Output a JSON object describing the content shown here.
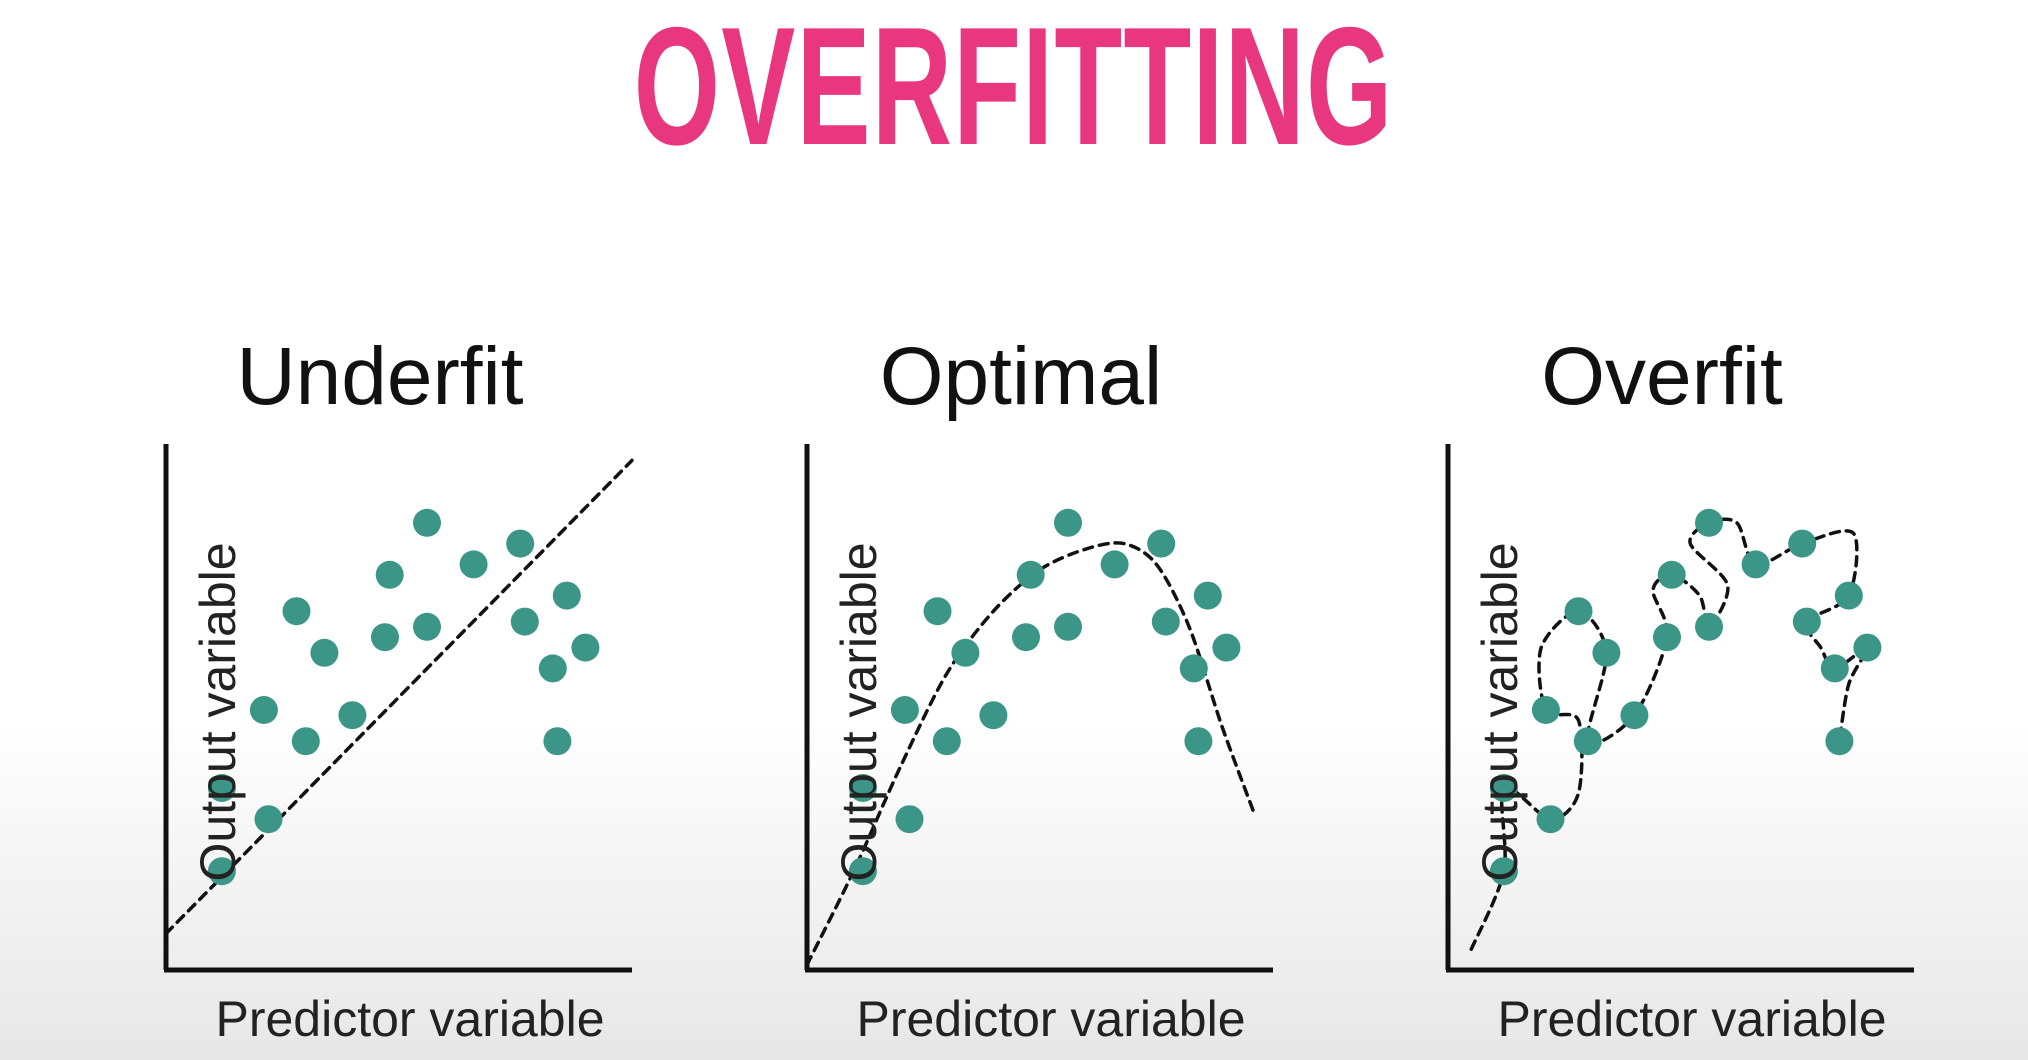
{
  "page": {
    "title": "OVERFITTING",
    "title_color": "#e8367f",
    "point_color": "#3b9688"
  },
  "chart_data": [
    {
      "type": "scatter",
      "title": "Underfit",
      "xlabel": "Predictor variable",
      "ylabel": "Output variable",
      "xlim": [
        0,
        100
      ],
      "ylim": [
        0,
        100
      ],
      "grid": false,
      "legend": "none",
      "points": [
        {
          "x": 12,
          "y": 35
        },
        {
          "x": 12,
          "y": 19
        },
        {
          "x": 21,
          "y": 50
        },
        {
          "x": 22,
          "y": 29
        },
        {
          "x": 28,
          "y": 69
        },
        {
          "x": 30,
          "y": 44
        },
        {
          "x": 34,
          "y": 61
        },
        {
          "x": 40,
          "y": 49
        },
        {
          "x": 47,
          "y": 64
        },
        {
          "x": 48,
          "y": 76
        },
        {
          "x": 56,
          "y": 66
        },
        {
          "x": 56,
          "y": 86
        },
        {
          "x": 66,
          "y": 78
        },
        {
          "x": 76,
          "y": 82
        },
        {
          "x": 77,
          "y": 67
        },
        {
          "x": 83,
          "y": 58
        },
        {
          "x": 84,
          "y": 44
        },
        {
          "x": 86,
          "y": 72
        },
        {
          "x": 90,
          "y": 62
        }
      ],
      "fit": [
        {
          "x": 0,
          "y": 7
        },
        {
          "x": 100,
          "y": 98
        }
      ]
    },
    {
      "type": "scatter",
      "title": "Optimal",
      "xlabel": "Predictor variable",
      "ylabel": "Output variable",
      "xlim": [
        0,
        100
      ],
      "ylim": [
        0,
        100
      ],
      "grid": false,
      "legend": "none",
      "points": [
        {
          "x": 12,
          "y": 35
        },
        {
          "x": 12,
          "y": 19
        },
        {
          "x": 21,
          "y": 50
        },
        {
          "x": 22,
          "y": 29
        },
        {
          "x": 28,
          "y": 69
        },
        {
          "x": 30,
          "y": 44
        },
        {
          "x": 34,
          "y": 61
        },
        {
          "x": 40,
          "y": 49
        },
        {
          "x": 47,
          "y": 64
        },
        {
          "x": 48,
          "y": 76
        },
        {
          "x": 56,
          "y": 66
        },
        {
          "x": 56,
          "y": 86
        },
        {
          "x": 66,
          "y": 78
        },
        {
          "x": 76,
          "y": 82
        },
        {
          "x": 77,
          "y": 67
        },
        {
          "x": 83,
          "y": 58
        },
        {
          "x": 84,
          "y": 44
        },
        {
          "x": 86,
          "y": 72
        },
        {
          "x": 90,
          "y": 62
        }
      ],
      "fit": [
        {
          "x": 0,
          "y": 1
        },
        {
          "x": 10,
          "y": 19
        },
        {
          "x": 20,
          "y": 39
        },
        {
          "x": 30,
          "y": 57
        },
        {
          "x": 40,
          "y": 69
        },
        {
          "x": 50,
          "y": 77
        },
        {
          "x": 60,
          "y": 81
        },
        {
          "x": 68,
          "y": 82
        },
        {
          "x": 75,
          "y": 78
        },
        {
          "x": 82,
          "y": 66
        },
        {
          "x": 89,
          "y": 47
        },
        {
          "x": 96,
          "y": 30
        }
      ]
    },
    {
      "type": "scatter",
      "title": "Overfit",
      "xlabel": "Predictor variable",
      "ylabel": "Output variable",
      "xlim": [
        0,
        100
      ],
      "ylim": [
        0,
        100
      ],
      "grid": false,
      "legend": "none",
      "points": [
        {
          "x": 12,
          "y": 35
        },
        {
          "x": 12,
          "y": 19
        },
        {
          "x": 21,
          "y": 50
        },
        {
          "x": 22,
          "y": 29
        },
        {
          "x": 28,
          "y": 69
        },
        {
          "x": 30,
          "y": 44
        },
        {
          "x": 34,
          "y": 61
        },
        {
          "x": 40,
          "y": 49
        },
        {
          "x": 47,
          "y": 64
        },
        {
          "x": 48,
          "y": 76
        },
        {
          "x": 56,
          "y": 66
        },
        {
          "x": 56,
          "y": 86
        },
        {
          "x": 66,
          "y": 78
        },
        {
          "x": 76,
          "y": 82
        },
        {
          "x": 77,
          "y": 67
        },
        {
          "x": 83,
          "y": 58
        },
        {
          "x": 84,
          "y": 44
        },
        {
          "x": 86,
          "y": 72
        },
        {
          "x": 90,
          "y": 62
        }
      ],
      "fit": [
        {
          "x": 5,
          "y": 4
        },
        {
          "x": 12,
          "y": 19
        },
        {
          "x": 12,
          "y": 35
        },
        {
          "x": 22,
          "y": 29
        },
        {
          "x": 28,
          "y": 34
        },
        {
          "x": 28,
          "y": 48
        },
        {
          "x": 21,
          "y": 50
        },
        {
          "x": 20,
          "y": 62
        },
        {
          "x": 28,
          "y": 69
        },
        {
          "x": 34,
          "y": 61
        },
        {
          "x": 30,
          "y": 44
        },
        {
          "x": 40,
          "y": 49
        },
        {
          "x": 47,
          "y": 64
        },
        {
          "x": 44,
          "y": 73
        },
        {
          "x": 48,
          "y": 76
        },
        {
          "x": 54,
          "y": 72
        },
        {
          "x": 56,
          "y": 66
        },
        {
          "x": 60,
          "y": 74
        },
        {
          "x": 52,
          "y": 82
        },
        {
          "x": 56,
          "y": 86
        },
        {
          "x": 62,
          "y": 86
        },
        {
          "x": 66,
          "y": 78
        },
        {
          "x": 76,
          "y": 82
        },
        {
          "x": 87,
          "y": 84
        },
        {
          "x": 86,
          "y": 72
        },
        {
          "x": 77,
          "y": 67
        },
        {
          "x": 80,
          "y": 62
        },
        {
          "x": 83,
          "y": 58
        },
        {
          "x": 90,
          "y": 62
        },
        {
          "x": 86,
          "y": 55
        },
        {
          "x": 84,
          "y": 44
        }
      ]
    }
  ]
}
